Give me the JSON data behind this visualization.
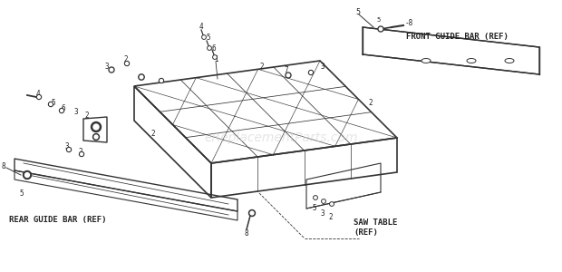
{
  "title": "",
  "bg_color": "#ffffff",
  "line_color": "#333333",
  "text_color": "#222222",
  "watermark": "eReplacementParts.com",
  "watermark_color": "#cccccc",
  "labels": {
    "front_guide_bar": "FRONT GUIDE BAR (REF)",
    "rear_guide_bar": "REAR GUIDE BAR (REF)",
    "saw_table": "SAW TABLE\n(REF)"
  },
  "part_numbers": [
    "1",
    "2",
    "3",
    "4",
    "5",
    "6",
    "7",
    "8"
  ],
  "fig_width": 6.2,
  "fig_height": 3.0,
  "dpi": 100
}
